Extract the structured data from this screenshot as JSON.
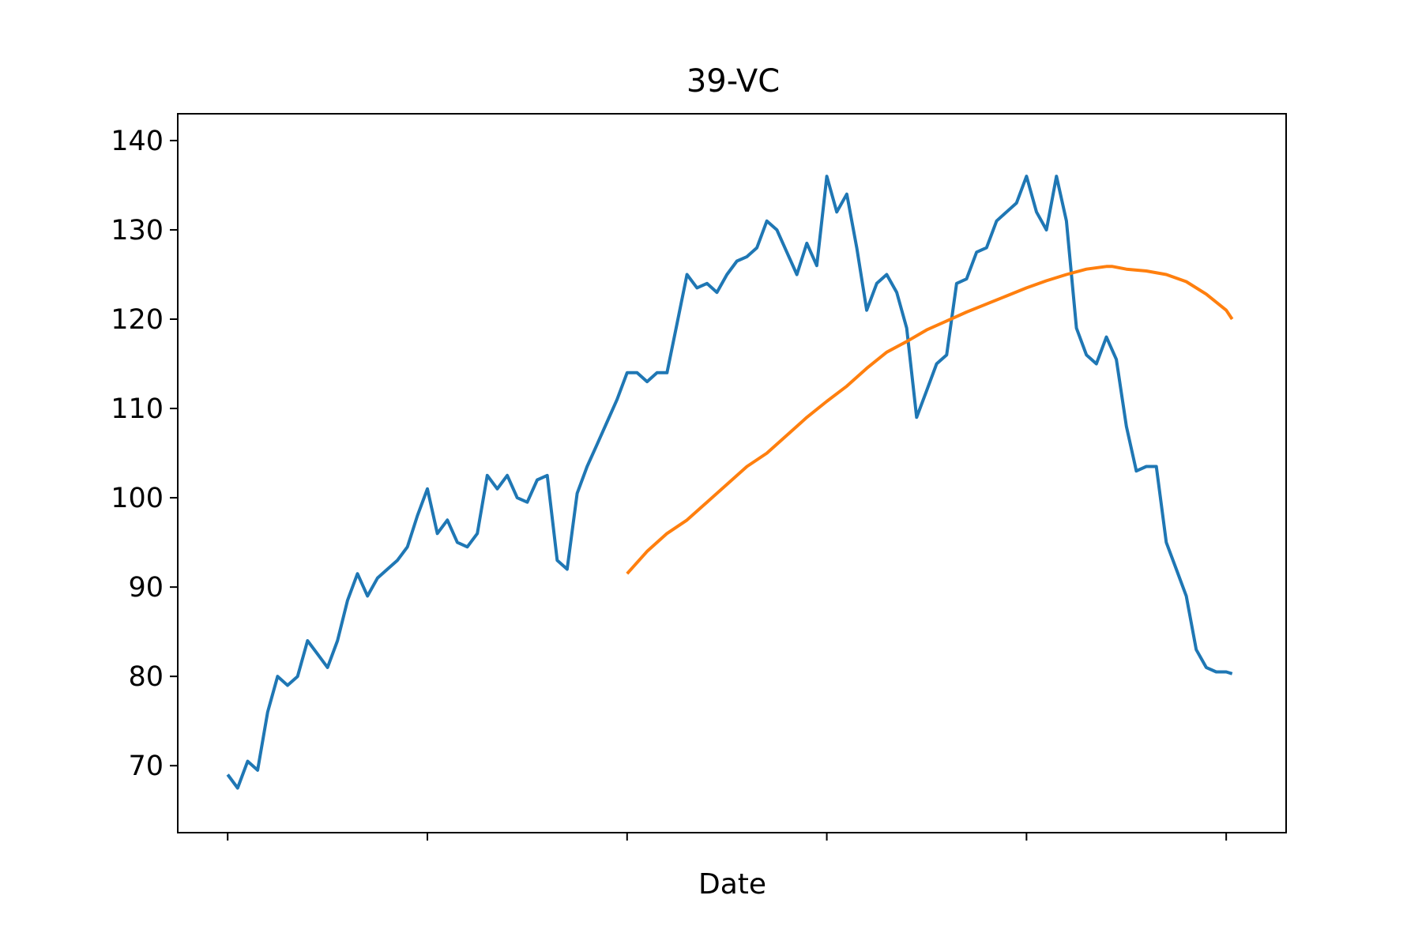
{
  "chart_data": {
    "type": "line",
    "title": "39-VC",
    "xlabel": "Date",
    "ylabel": "",
    "ylim": [
      62.5,
      143
    ],
    "xlim": [
      -25,
      530
    ],
    "grid": false,
    "legend": "none",
    "y_ticks": [
      70,
      80,
      90,
      100,
      110,
      120,
      130,
      140
    ],
    "x_ticks": [
      0,
      100,
      200,
      300,
      400,
      500
    ],
    "x_tick_labels": [
      "",
      "",
      "",
      "",
      "",
      ""
    ],
    "series": [
      {
        "color": "#1f77b4",
        "x": [
          0,
          5,
          10,
          15,
          20,
          25,
          30,
          35,
          40,
          45,
          50,
          55,
          60,
          65,
          70,
          75,
          80,
          85,
          90,
          95,
          100,
          105,
          110,
          115,
          120,
          125,
          130,
          135,
          140,
          145,
          150,
          155,
          160,
          165,
          170,
          175,
          180,
          185,
          190,
          195,
          200,
          205,
          210,
          215,
          220,
          225,
          230,
          235,
          240,
          245,
          250,
          255,
          260,
          265,
          270,
          275,
          280,
          285,
          290,
          295,
          300,
          305,
          310,
          315,
          320,
          325,
          330,
          335,
          340,
          345,
          350,
          355,
          360,
          365,
          370,
          375,
          380,
          385,
          390,
          395,
          400,
          405,
          410,
          415,
          420,
          425,
          430,
          435,
          440,
          445,
          450,
          455,
          460,
          465,
          470,
          475,
          480,
          485,
          490,
          495,
          500,
          503
        ],
        "y": [
          69,
          67.5,
          70.5,
          69.5,
          76,
          80,
          79,
          80,
          84,
          82.5,
          81,
          84,
          88.5,
          91.5,
          89,
          91,
          92,
          93,
          94.5,
          98,
          101,
          96,
          97.5,
          95,
          94.5,
          96,
          102.5,
          101,
          102.5,
          100,
          99.5,
          102,
          102.5,
          93,
          92,
          100.5,
          103.5,
          106,
          108.5,
          111,
          114,
          114,
          113,
          114,
          114,
          119.5,
          125,
          123.5,
          124,
          123,
          125,
          126.5,
          127,
          128,
          131,
          130,
          127.5,
          125,
          128.5,
          126,
          136,
          132,
          134,
          128,
          121,
          124,
          125,
          123,
          119,
          109,
          112,
          115,
          116,
          124,
          124.5,
          127.5,
          128,
          131,
          132,
          133,
          136,
          132,
          130,
          136,
          131,
          119,
          116,
          115,
          118,
          115.5,
          108,
          103,
          103.5,
          103.5,
          95,
          92,
          89,
          83,
          81,
          80.5,
          80.5,
          80.3
        ]
      },
      {
        "color": "#ff7f0e",
        "x": [
          200,
          210,
          220,
          230,
          240,
          250,
          260,
          270,
          280,
          290,
          300,
          310,
          320,
          330,
          340,
          350,
          360,
          370,
          380,
          390,
          400,
          410,
          420,
          430,
          440,
          443,
          450,
          460,
          470,
          480,
          490,
          500,
          503
        ],
        "y": [
          91.5,
          94,
          96,
          97.5,
          99.5,
          101.5,
          103.5,
          105,
          107,
          109,
          110.8,
          112.5,
          114.5,
          116.3,
          117.5,
          118.8,
          119.8,
          120.8,
          121.7,
          122.6,
          123.5,
          124.3,
          125,
          125.6,
          125.9,
          125.9,
          125.6,
          125.4,
          125,
          124.2,
          122.8,
          121,
          120
        ]
      }
    ]
  }
}
